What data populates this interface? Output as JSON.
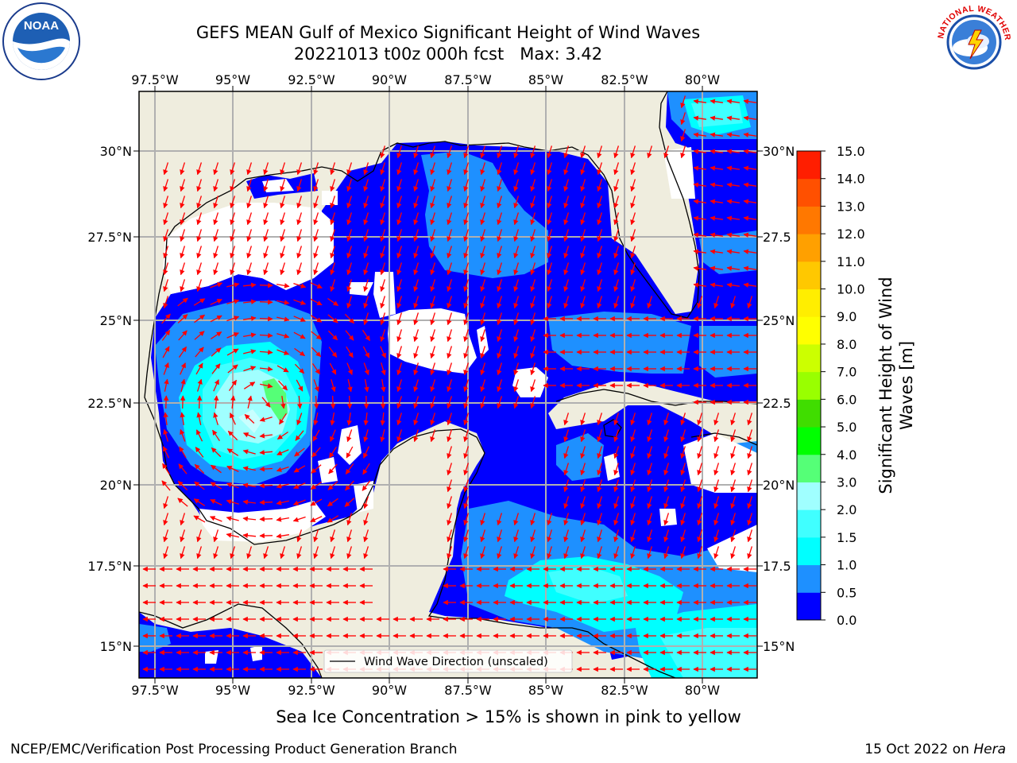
{
  "title": {
    "line1": "GEFS MEAN Gulf of Mexico Significant Height of Wind Waves",
    "line2": "20221013 t00z 000h fcst   Max: 3.42"
  },
  "logos": {
    "left_icon": "noaa-logo-icon",
    "right_icon": "national-weather-service-logo-icon",
    "right_text": "NATIONAL WEATHER SERVICE"
  },
  "map": {
    "lon_labels": [
      "97.5°W",
      "95°W",
      "92.5°W",
      "90°W",
      "87.5°W",
      "85°W",
      "82.5°W",
      "80°W"
    ],
    "lat_labels_left": [
      "30°N",
      "27.5°N",
      "25°N",
      "22.5°N",
      "20°N",
      "17.5°N",
      "15°N"
    ],
    "lat_labels_right": [
      "30°N",
      "27.5",
      "25°N",
      "22.5",
      "20°N",
      "17.5",
      "15°N"
    ],
    "legend_label": "Wind Wave Direction (unscaled)",
    "land_color": "#efedde",
    "arrow_color": "#ff0000"
  },
  "colorbar": {
    "label_line1": "Significant Height of Wind",
    "label_line2": "Waves [m]",
    "ticks": [
      "0.0",
      "0.5",
      "1.0",
      "1.5",
      "2.0",
      "3.0",
      "4.0",
      "5.0",
      "6.0",
      "7.0",
      "8.0",
      "9.0",
      "10.0",
      "11.0",
      "12.0",
      "13.0",
      "14.0",
      "15.0"
    ],
    "colors": [
      "#0000ff",
      "#1e90ff",
      "#00ffff",
      "#40ffff",
      "#a0ffff",
      "#55ff77",
      "#00ff00",
      "#40dd00",
      "#99ff00",
      "#ccff00",
      "#ffff00",
      "#ffee00",
      "#ffc800",
      "#ffa000",
      "#ff7800",
      "#ff5000",
      "#ff1e00"
    ]
  },
  "sea_ice_note": "Sea Ice Concentration > 15% is shown in pink to yellow",
  "footer": {
    "left": "NCEP/EMC/Verification Post Processing Product Generation Branch",
    "date": "15 Oct 2022 on ",
    "machine": "Hera"
  }
}
